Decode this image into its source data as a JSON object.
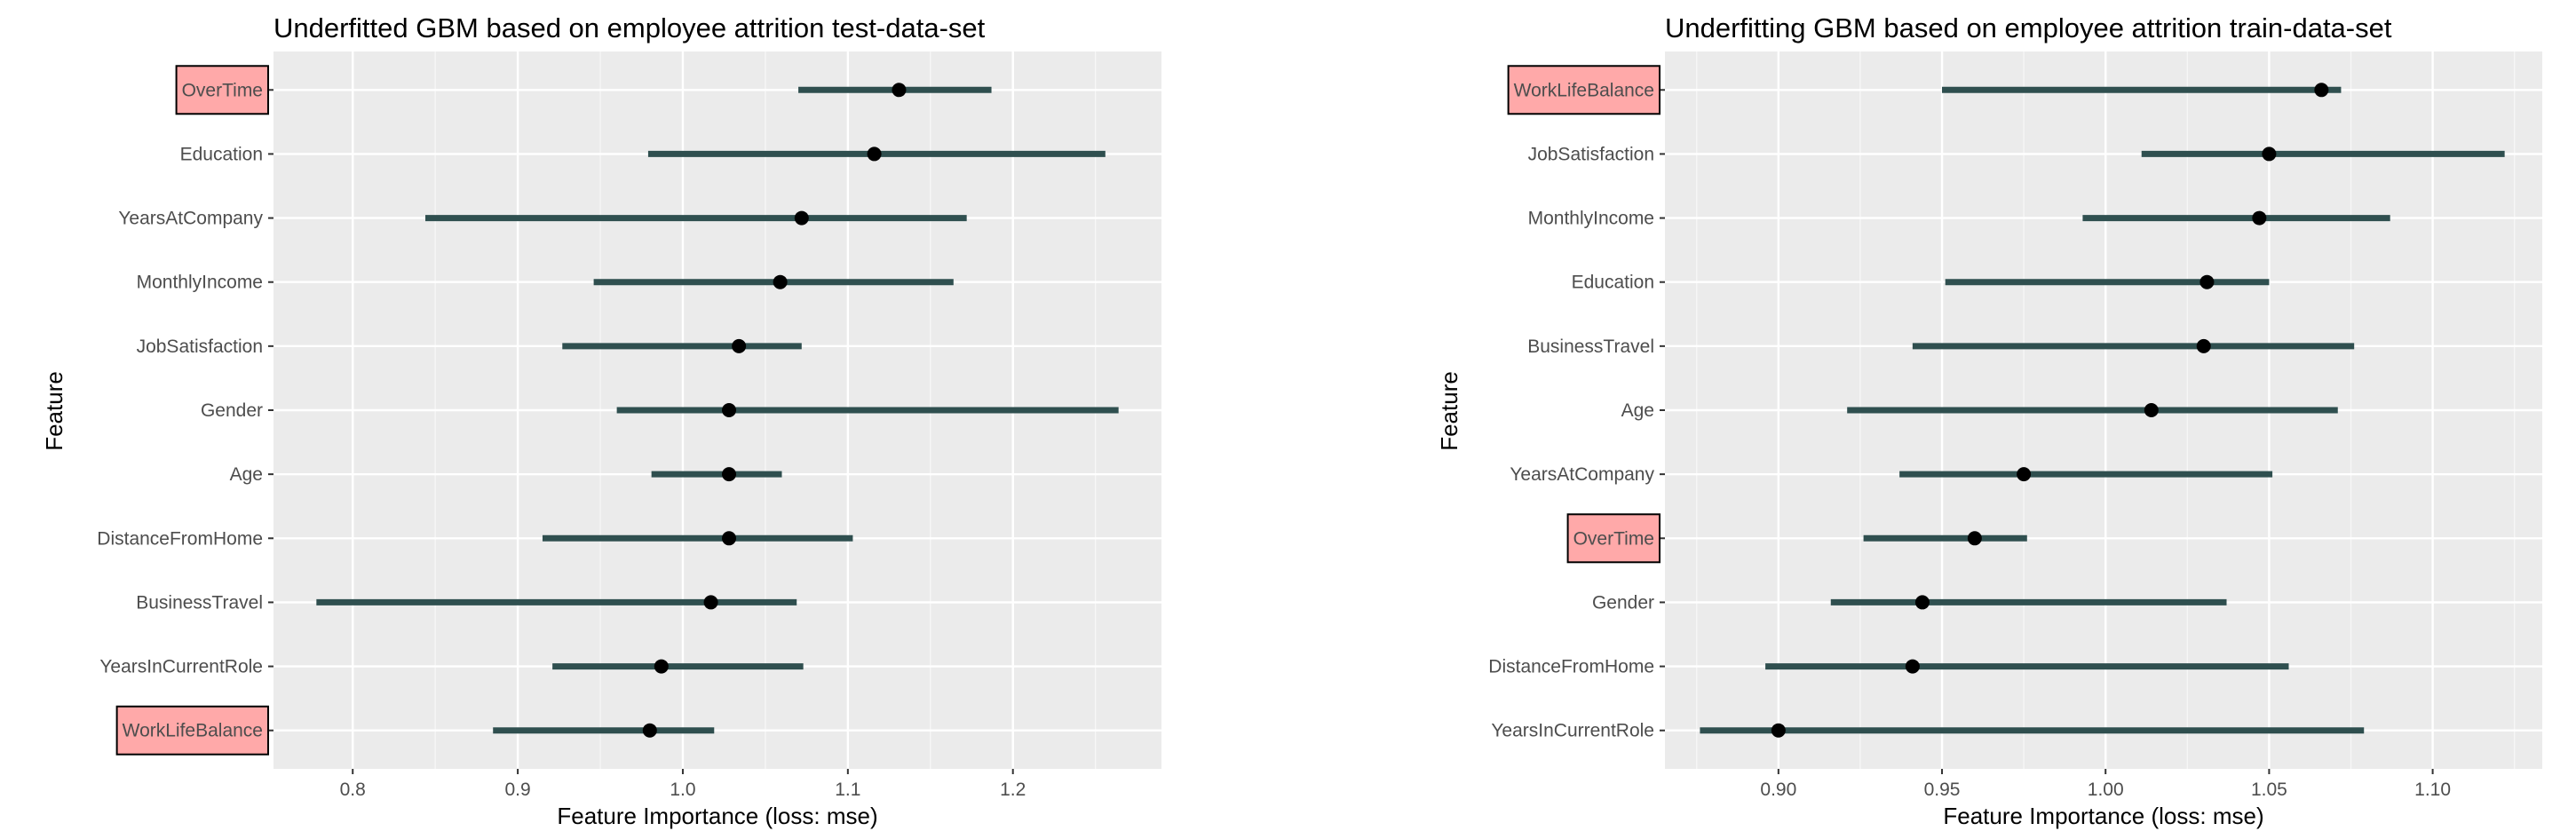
{
  "colors": {
    "panel": "#ebebeb",
    "grid_major": "#ffffff",
    "grid_minor": "#f7f7f7",
    "bar": "#2f4f4f",
    "point": "#000000",
    "highlight_fill": "#ffa9a9",
    "highlight_border": "#000000",
    "tick_label": "#4d4d4d"
  },
  "chart_data": [
    {
      "type": "interval-dot",
      "title": "Underfitted GBM based on employee attrition test-data-set",
      "xlabel": "Feature Importance (loss: mse)",
      "ylabel": "Feature",
      "xlim": [
        0.752,
        1.29
      ],
      "xticks": [
        0.8,
        0.9,
        1.0,
        1.1,
        1.2
      ],
      "xtick_labels": [
        "0.8",
        "0.9",
        "1.0",
        "1.1",
        "1.2"
      ],
      "grid": true,
      "features": [
        {
          "name": "OverTime",
          "value": 1.131,
          "low": 1.07,
          "high": 1.187,
          "highlight": true
        },
        {
          "name": "Education",
          "value": 1.116,
          "low": 0.979,
          "high": 1.256,
          "highlight": false
        },
        {
          "name": "YearsAtCompany",
          "value": 1.072,
          "low": 0.844,
          "high": 1.172,
          "highlight": false
        },
        {
          "name": "MonthlyIncome",
          "value": 1.059,
          "low": 0.946,
          "high": 1.164,
          "highlight": false
        },
        {
          "name": "JobSatisfaction",
          "value": 1.034,
          "low": 0.927,
          "high": 1.072,
          "highlight": false
        },
        {
          "name": "Gender",
          "value": 1.028,
          "low": 0.96,
          "high": 1.264,
          "highlight": false
        },
        {
          "name": "Age",
          "value": 1.028,
          "low": 0.981,
          "high": 1.06,
          "highlight": false
        },
        {
          "name": "DistanceFromHome",
          "value": 1.028,
          "low": 0.915,
          "high": 1.103,
          "highlight": false
        },
        {
          "name": "BusinessTravel",
          "value": 1.017,
          "low": 0.778,
          "high": 1.069,
          "highlight": false
        },
        {
          "name": "YearsInCurrentRole",
          "value": 0.987,
          "low": 0.921,
          "high": 1.073,
          "highlight": false
        },
        {
          "name": "WorkLifeBalance",
          "value": 0.98,
          "low": 0.885,
          "high": 1.019,
          "highlight": true
        }
      ]
    },
    {
      "type": "interval-dot",
      "title": "Underfitting GBM based on employee attrition train-data-set",
      "xlabel": "Feature Importance (loss: mse)",
      "ylabel": "Feature",
      "xlim": [
        0.8653,
        1.1335
      ],
      "xticks": [
        0.9,
        0.95,
        1.0,
        1.05,
        1.1
      ],
      "xtick_labels": [
        "0.90",
        "0.95",
        "1.00",
        "1.05",
        "1.10"
      ],
      "grid": true,
      "features": [
        {
          "name": "WorkLifeBalance",
          "value": 1.066,
          "low": 0.95,
          "high": 1.072,
          "highlight": true
        },
        {
          "name": "JobSatisfaction",
          "value": 1.05,
          "low": 1.011,
          "high": 1.122,
          "highlight": false
        },
        {
          "name": "MonthlyIncome",
          "value": 1.047,
          "low": 0.993,
          "high": 1.087,
          "highlight": false
        },
        {
          "name": "Education",
          "value": 1.031,
          "low": 0.951,
          "high": 1.05,
          "highlight": false
        },
        {
          "name": "BusinessTravel",
          "value": 1.03,
          "low": 0.941,
          "high": 1.076,
          "highlight": false
        },
        {
          "name": "Age",
          "value": 1.014,
          "low": 0.921,
          "high": 1.071,
          "highlight": false
        },
        {
          "name": "YearsAtCompany",
          "value": 0.975,
          "low": 0.937,
          "high": 1.051,
          "highlight": false
        },
        {
          "name": "OverTime",
          "value": 0.96,
          "low": 0.926,
          "high": 0.976,
          "highlight": true
        },
        {
          "name": "Gender",
          "value": 0.944,
          "low": 0.916,
          "high": 1.037,
          "highlight": false
        },
        {
          "name": "DistanceFromHome",
          "value": 0.941,
          "low": 0.896,
          "high": 1.056,
          "highlight": false
        },
        {
          "name": "YearsInCurrentRole",
          "value": 0.9,
          "low": 0.876,
          "high": 1.079,
          "highlight": false
        }
      ]
    }
  ]
}
